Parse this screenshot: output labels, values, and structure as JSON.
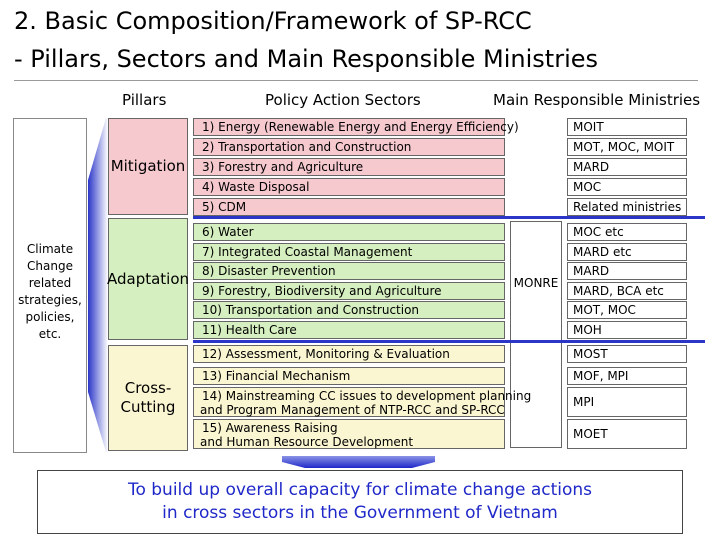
{
  "title": {
    "line1": "2. Basic Composition/Framework of SP-RCC",
    "line2": "- Pillars, Sectors and Main Responsible Ministries"
  },
  "headers": {
    "pillars": "Pillars",
    "sectors": "Policy Action Sectors",
    "ministries": "Main Responsible Ministries"
  },
  "left_box": {
    "lines": [
      "Climate",
      "Change",
      "related",
      "strategies,",
      "policies, etc."
    ]
  },
  "pillars": {
    "mitigation": "Mitigation",
    "adaptation": "Adaptation",
    "cross_cutting_1": "Cross-",
    "cross_cutting_2": "Cutting"
  },
  "sectors": {
    "s1": "1) Energy (Renewable Energy and Energy Efficiency)",
    "s2": "2) Transportation and Construction",
    "s3": "3) Forestry and Agriculture",
    "s4": "4) Waste Disposal",
    "s5": "5) CDM",
    "s6": "6) Water",
    "s7": "7) Integrated Coastal Management",
    "s8": "8) Disaster Prevention",
    "s9": "9) Forestry, Biodiversity and Agriculture",
    "s10": "10) Transportation and Construction",
    "s11": "11) Health Care",
    "s12": "12) Assessment, Monitoring & Evaluation",
    "s13": "13) Financial Mechanism",
    "s14a": "14) Mainstreaming CC issues to development planning",
    "s14b": "and Program Management of NTP-RCC and SP-RCC",
    "s15a": "15) Awareness Raising",
    "s15b": "and Human Resource Development"
  },
  "monre": "MONRE",
  "ministries": {
    "m1": "MOIT",
    "m2": "MOT, MOC, MOIT",
    "m3": "MARD",
    "m4": "MOC",
    "m5": "Related ministries",
    "m6": "MOC etc",
    "m7": "MARD etc",
    "m8": "MARD",
    "m9": "MARD, BCA etc",
    "m10": "MOT, MOC",
    "m11": "MOH",
    "m12": "MOST",
    "m13": "MOF, MPI",
    "m14": "MPI",
    "m15": "MOET"
  },
  "footer": {
    "line1": "To build up overall capacity for climate change actions",
    "line2": "in cross sectors in the Government of Vietnam"
  },
  "colors": {
    "mitigation": "#f6c9cf",
    "adaptation": "#d6efc0",
    "cross_cutting": "#fbf6d2",
    "accent_blue": "#2b36c8",
    "footer_text": "#1f28c8"
  }
}
